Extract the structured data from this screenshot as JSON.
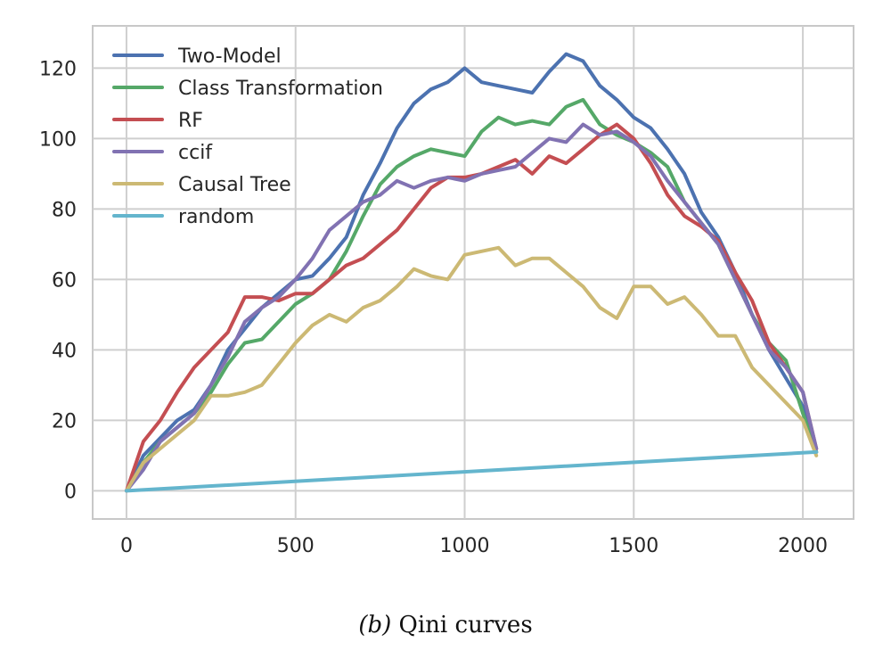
{
  "chart_data": {
    "type": "line",
    "title": "",
    "xlabel": "",
    "ylabel": "",
    "xlim": [
      -100,
      2150
    ],
    "ylim": [
      -8,
      132
    ],
    "xticks": [
      0,
      500,
      1000,
      1500,
      2000
    ],
    "yticks": [
      0,
      20,
      40,
      60,
      80,
      100,
      120
    ],
    "grid": true,
    "legend_position": "top-left",
    "series": [
      {
        "name": "Two-Model",
        "color": "#4c72b0",
        "x": [
          0,
          50,
          100,
          150,
          200,
          250,
          300,
          350,
          400,
          450,
          500,
          550,
          600,
          650,
          700,
          750,
          800,
          850,
          900,
          950,
          1000,
          1050,
          1100,
          1150,
          1200,
          1250,
          1300,
          1350,
          1400,
          1450,
          1500,
          1550,
          1600,
          1650,
          1700,
          1750,
          1800,
          1850,
          1900,
          1950,
          2000,
          2040
        ],
        "values": [
          0,
          10,
          15,
          20,
          23,
          30,
          40,
          46,
          52,
          56,
          60,
          61,
          66,
          72,
          84,
          93,
          103,
          110,
          114,
          116,
          120,
          116,
          115,
          114,
          113,
          119,
          124,
          122,
          115,
          111,
          106,
          103,
          97,
          90,
          79,
          72,
          62,
          50,
          40,
          32,
          24,
          11
        ]
      },
      {
        "name": "Class Transformation",
        "color": "#55a868",
        "x": [
          0,
          50,
          100,
          150,
          200,
          250,
          300,
          350,
          400,
          450,
          500,
          550,
          600,
          650,
          700,
          750,
          800,
          850,
          900,
          950,
          1000,
          1050,
          1100,
          1150,
          1200,
          1250,
          1300,
          1350,
          1400,
          1450,
          1500,
          1550,
          1600,
          1650,
          1700,
          1750,
          1800,
          1850,
          1900,
          1950,
          2000,
          2040
        ],
        "values": [
          0,
          8,
          14,
          18,
          22,
          28,
          36,
          42,
          43,
          48,
          53,
          56,
          60,
          68,
          78,
          87,
          92,
          95,
          97,
          96,
          95,
          102,
          106,
          104,
          105,
          104,
          109,
          111,
          104,
          101,
          99,
          96,
          92,
          82,
          76,
          70,
          60,
          50,
          42,
          37,
          22,
          11
        ]
      },
      {
        "name": "RF",
        "color": "#c44e52",
        "x": [
          0,
          50,
          100,
          150,
          200,
          250,
          300,
          350,
          400,
          450,
          500,
          550,
          600,
          650,
          700,
          750,
          800,
          850,
          900,
          950,
          1000,
          1050,
          1100,
          1150,
          1200,
          1250,
          1300,
          1350,
          1400,
          1450,
          1500,
          1550,
          1600,
          1650,
          1700,
          1750,
          1800,
          1850,
          1900,
          1950,
          2000,
          2040
        ],
        "values": [
          0,
          14,
          20,
          28,
          35,
          40,
          45,
          55,
          55,
          54,
          56,
          56,
          60,
          64,
          66,
          70,
          74,
          80,
          86,
          89,
          89,
          90,
          92,
          94,
          90,
          95,
          93,
          97,
          101,
          104,
          100,
          93,
          84,
          78,
          75,
          71,
          62,
          54,
          42,
          35,
          28,
          12
        ]
      },
      {
        "name": "ccif",
        "color": "#8172b2",
        "x": [
          0,
          50,
          100,
          150,
          200,
          250,
          300,
          350,
          400,
          450,
          500,
          550,
          600,
          650,
          700,
          750,
          800,
          850,
          900,
          950,
          1000,
          1050,
          1100,
          1150,
          1200,
          1250,
          1300,
          1350,
          1400,
          1450,
          1500,
          1550,
          1600,
          1650,
          1700,
          1750,
          1800,
          1850,
          1900,
          1950,
          2000,
          2040
        ],
        "values": [
          0,
          6,
          14,
          18,
          22,
          30,
          38,
          48,
          52,
          55,
          60,
          66,
          74,
          78,
          82,
          84,
          88,
          86,
          88,
          89,
          88,
          90,
          91,
          92,
          96,
          100,
          99,
          104,
          101,
          102,
          99,
          95,
          88,
          82,
          76,
          70,
          60,
          50,
          40,
          35,
          28,
          12
        ]
      },
      {
        "name": "Causal Tree",
        "color": "#ccb974",
        "x": [
          0,
          50,
          100,
          150,
          200,
          250,
          300,
          350,
          400,
          450,
          500,
          550,
          600,
          650,
          700,
          750,
          800,
          850,
          900,
          950,
          1000,
          1050,
          1100,
          1150,
          1200,
          1250,
          1300,
          1350,
          1400,
          1450,
          1500,
          1550,
          1600,
          1650,
          1700,
          1750,
          1800,
          1850,
          1900,
          1950,
          2000,
          2040
        ],
        "values": [
          0,
          8,
          12,
          16,
          20,
          27,
          27,
          28,
          30,
          36,
          42,
          47,
          50,
          48,
          52,
          54,
          58,
          63,
          61,
          60,
          67,
          68,
          69,
          64,
          66,
          66,
          62,
          58,
          52,
          49,
          58,
          58,
          53,
          55,
          50,
          44,
          44,
          35,
          30,
          25,
          20,
          10
        ]
      },
      {
        "name": "random",
        "color": "#64b5cd",
        "x": [
          0,
          2040
        ],
        "values": [
          0,
          11
        ]
      }
    ]
  },
  "caption": {
    "tag": "(b)",
    "text": " Qini curves"
  }
}
